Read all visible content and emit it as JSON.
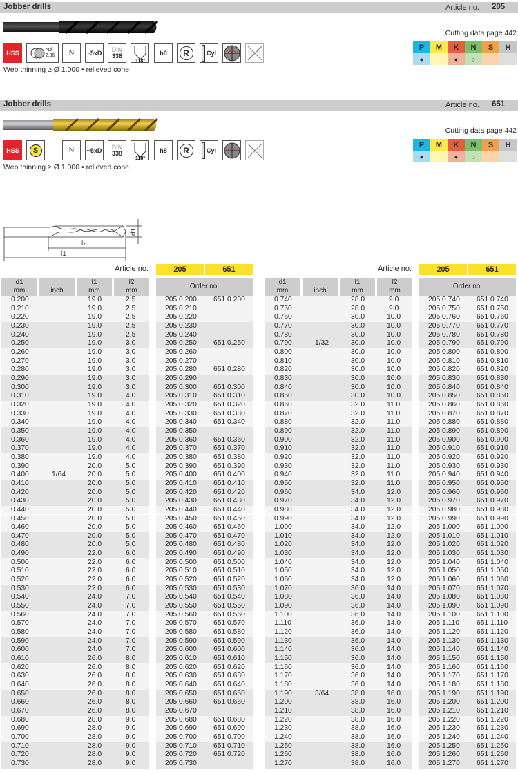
{
  "products": [
    {
      "title": "Jobber drills",
      "article_label": "Article no.",
      "article_no": "205",
      "cutting_data": "Cutting data page 442",
      "icons": [
        "HSS",
        "cylinder-shank >Ø 2,36",
        "N",
        "~5xD",
        "DIN 338",
        "118°",
        "h8",
        "R",
        "Cyl",
        "cross-section",
        "no-coolant"
      ],
      "icon_text": {
        "hss": "HSS",
        "dia": ">Ø",
        "dia_val": "2,36",
        "n": "N",
        "depth": "~5xD",
        "din": "DIN",
        "din_no": "338",
        "angle": "118°",
        "tol": "h8",
        "r": "R",
        "cyl": "Cyl"
      },
      "drill_finish": "black",
      "note": "Web thinning ≥ Ø 1.000 • relieved cone"
    },
    {
      "title": "Jobber drills",
      "article_label": "Article no.",
      "article_no": "651",
      "cutting_data": "Cutting data page 442",
      "icons": [
        "HSS",
        "S",
        "N",
        "~5xD",
        "DIN 338",
        "118°",
        "h8",
        "R",
        "Cyl",
        "cross-section",
        "no-coolant"
      ],
      "icon_text": {
        "hss": "HSS",
        "s": "S",
        "n": "N",
        "depth": "~5xD",
        "din": "DIN",
        "din_no": "338",
        "angle": "118°",
        "tol": "h8",
        "r": "R",
        "cyl": "Cyl"
      },
      "drill_finish": "TiN gold",
      "note": "Web thinning ≥ Ø 1.000 • relieved cone"
    }
  ],
  "materials": {
    "groups": [
      {
        "letter": "P",
        "color": "#1bb5e8",
        "light": "#a9dcf3",
        "mark": "●"
      },
      {
        "letter": "M",
        "color": "#fbe94a",
        "light": "#fdf6b5",
        "mark": ""
      },
      {
        "letter": "K",
        "color": "#e0603f",
        "light": "#efb29d",
        "mark": "●"
      },
      {
        "letter": "N",
        "color": "#7cbf6a",
        "light": "#c3e1b6",
        "mark": "○"
      },
      {
        "letter": "S",
        "color": "#f4a04a",
        "light": "#fbd4ab",
        "mark": ""
      },
      {
        "letter": "H",
        "color": "#c6c6c7",
        "light": "#dededf",
        "mark": ""
      }
    ]
  },
  "diagram": {
    "d1": "d1",
    "l1": "l1",
    "l2": "l2"
  },
  "table": {
    "article_label": "Article no.",
    "articles": [
      "205",
      "651"
    ],
    "headers": {
      "d1": "d1",
      "d1_unit": "mm",
      "inch": "inch",
      "l1": "l1",
      "l1_unit": "mm",
      "l2": "l2",
      "l2_unit": "mm",
      "order": "Order no."
    },
    "left_rows": [
      [
        "0.200",
        "",
        "19.0",
        "2.5",
        "205 0.200",
        "651 0.200"
      ],
      [
        "0.210",
        "",
        "19.0",
        "2.5",
        "205 0.210",
        ""
      ],
      [
        "0.220",
        "",
        "19.0",
        "2.5",
        "205 0.220",
        ""
      ],
      [
        "0.230",
        "",
        "19.0",
        "2.5",
        "205 0.230",
        ""
      ],
      [
        "0.240",
        "",
        "19.0",
        "2.5",
        "205 0.240",
        ""
      ],
      [
        "0.250",
        "",
        "19.0",
        "3.0",
        "205 0.250",
        "651 0.250"
      ],
      [
        "0.260",
        "",
        "19.0",
        "3.0",
        "205 0.260",
        ""
      ],
      [
        "0.270",
        "",
        "19.0",
        "3.0",
        "205 0.270",
        ""
      ],
      [
        "0.280",
        "",
        "19.0",
        "3.0",
        "205 0.280",
        "651 0.280"
      ],
      [
        "0.290",
        "",
        "19.0",
        "3.0",
        "205 0.290",
        ""
      ],
      [
        "0.300",
        "",
        "19.0",
        "3.0",
        "205 0.300",
        "651 0.300"
      ],
      [
        "0.310",
        "",
        "19.0",
        "4.0",
        "205 0.310",
        "651 0.310"
      ],
      [
        "0.320",
        "",
        "19.0",
        "4.0",
        "205 0.320",
        "651 0.320"
      ],
      [
        "0.330",
        "",
        "19.0",
        "4.0",
        "205 0.330",
        "651 0.330"
      ],
      [
        "0.340",
        "",
        "19.0",
        "4.0",
        "205 0.340",
        "651 0.340"
      ],
      [
        "0.350",
        "",
        "19.0",
        "4.0",
        "205 0.350",
        ""
      ],
      [
        "0.360",
        "",
        "19.0",
        "4.0",
        "205 0.360",
        "651 0.360"
      ],
      [
        "0.370",
        "",
        "19.0",
        "4.0",
        "205 0.370",
        "651 0.370"
      ],
      [
        "0.380",
        "",
        "19.0",
        "4.0",
        "205 0.380",
        "651 0.380"
      ],
      [
        "0.390",
        "",
        "20.0",
        "5.0",
        "205 0.390",
        "651 0.390"
      ],
      [
        "0.400",
        "1/64",
        "20.0",
        "5.0",
        "205 0.400",
        "651 0.400"
      ],
      [
        "0.410",
        "",
        "20.0",
        "5.0",
        "205 0.410",
        "651 0.410"
      ],
      [
        "0.420",
        "",
        "20.0",
        "5.0",
        "205 0.420",
        "651 0.420"
      ],
      [
        "0.430",
        "",
        "20.0",
        "5.0",
        "205 0.430",
        "651 0.430"
      ],
      [
        "0.440",
        "",
        "20.0",
        "5.0",
        "205 0.440",
        "651 0.440"
      ],
      [
        "0.450",
        "",
        "20.0",
        "5.0",
        "205 0.450",
        "651 0.450"
      ],
      [
        "0.460",
        "",
        "20.0",
        "5.0",
        "205 0.460",
        "651 0.460"
      ],
      [
        "0.470",
        "",
        "20.0",
        "5.0",
        "205 0.470",
        "651 0.470"
      ],
      [
        "0.480",
        "",
        "20.0",
        "5.0",
        "205 0.480",
        "651 0.480"
      ],
      [
        "0.490",
        "",
        "22.0",
        "6.0",
        "205 0.490",
        "651 0.490"
      ],
      [
        "0.500",
        "",
        "22.0",
        "6.0",
        "205 0.500",
        "651 0.500"
      ],
      [
        "0.510",
        "",
        "22.0",
        "6.0",
        "205 0.510",
        "651 0.510"
      ],
      [
        "0.520",
        "",
        "22.0",
        "6.0",
        "205 0.520",
        "651 0.520"
      ],
      [
        "0.530",
        "",
        "22.0",
        "6.0",
        "205 0.530",
        "651 0.530"
      ],
      [
        "0.540",
        "",
        "24.0",
        "7.0",
        "205 0.540",
        "651 0.540"
      ],
      [
        "0.550",
        "",
        "24.0",
        "7.0",
        "205 0.550",
        "651 0.550"
      ],
      [
        "0.560",
        "",
        "24.0",
        "7.0",
        "205 0.560",
        "651 0.560"
      ],
      [
        "0.570",
        "",
        "24.0",
        "7.0",
        "205 0.570",
        "651 0.570"
      ],
      [
        "0.580",
        "",
        "24.0",
        "7.0",
        "205 0.580",
        "651 0.580"
      ],
      [
        "0.590",
        "",
        "24.0",
        "7.0",
        "205 0.590",
        "651 0.590"
      ],
      [
        "0.600",
        "",
        "24.0",
        "7.0",
        "205 0.600",
        "651 0.600"
      ],
      [
        "0.610",
        "",
        "26.0",
        "8.0",
        "205 0.610",
        "651 0.610"
      ],
      [
        "0.620",
        "",
        "26.0",
        "8.0",
        "205 0.620",
        "651 0.620"
      ],
      [
        "0.630",
        "",
        "26.0",
        "8.0",
        "205 0.630",
        "651 0.630"
      ],
      [
        "0.640",
        "",
        "26.0",
        "8.0",
        "205 0.640",
        "651 0.640"
      ],
      [
        "0.650",
        "",
        "26.0",
        "8.0",
        "205 0.650",
        "651 0.650"
      ],
      [
        "0.660",
        "",
        "26.0",
        "8.0",
        "205 0.660",
        "651 0.660"
      ],
      [
        "0.670",
        "",
        "26.0",
        "8.0",
        "205 0.670",
        ""
      ],
      [
        "0.680",
        "",
        "28.0",
        "9.0",
        "205 0.680",
        "651 0.680"
      ],
      [
        "0.690",
        "",
        "28.0",
        "9.0",
        "205 0.690",
        "651 0.690"
      ],
      [
        "0.700",
        "",
        "28.0",
        "9.0",
        "205 0.700",
        "651 0.700"
      ],
      [
        "0.710",
        "",
        "28.0",
        "9.0",
        "205 0.710",
        "651 0.710"
      ],
      [
        "0.720",
        "",
        "28.0",
        "9.0",
        "205 0.720",
        "651 0.720"
      ],
      [
        "0.730",
        "",
        "28.0",
        "9.0",
        "205 0.730",
        ""
      ]
    ],
    "right_rows": [
      [
        "0.740",
        "",
        "28.0",
        "9.0",
        "205 0.740",
        "651 0.740"
      ],
      [
        "0.750",
        "",
        "28.0",
        "9.0",
        "205 0.750",
        "651 0.750"
      ],
      [
        "0.760",
        "",
        "30.0",
        "10.0",
        "205 0.760",
        "651 0.760"
      ],
      [
        "0.770",
        "",
        "30.0",
        "10.0",
        "205 0.770",
        "651 0.770"
      ],
      [
        "0.780",
        "",
        "30.0",
        "10.0",
        "205 0.780",
        "651 0.780"
      ],
      [
        "0.790",
        "1/32",
        "30.0",
        "10.0",
        "205 0.790",
        "651 0.790"
      ],
      [
        "0.800",
        "",
        "30.0",
        "10.0",
        "205 0.800",
        "651 0.800"
      ],
      [
        "0.810",
        "",
        "30.0",
        "10.0",
        "205 0.810",
        "651 0.810"
      ],
      [
        "0.820",
        "",
        "30.0",
        "10.0",
        "205 0.820",
        "651 0.820"
      ],
      [
        "0.830",
        "",
        "30.0",
        "10.0",
        "205 0.830",
        "651 0.830"
      ],
      [
        "0.840",
        "",
        "30.0",
        "10.0",
        "205 0.840",
        "651 0.840"
      ],
      [
        "0.850",
        "",
        "30.0",
        "10.0",
        "205 0.850",
        "651 0.850"
      ],
      [
        "0.860",
        "",
        "32.0",
        "11.0",
        "205 0.860",
        "651 0.860"
      ],
      [
        "0.870",
        "",
        "32.0",
        "11.0",
        "205 0.870",
        "651 0.870"
      ],
      [
        "0.880",
        "",
        "32.0",
        "11.0",
        "205 0.880",
        "651 0.880"
      ],
      [
        "0.890",
        "",
        "32.0",
        "11.0",
        "205 0.890",
        "651 0.890"
      ],
      [
        "0.900",
        "",
        "32.0",
        "11.0",
        "205 0.900",
        "651 0.900"
      ],
      [
        "0.910",
        "",
        "32.0",
        "11.0",
        "205 0.910",
        "651 0.910"
      ],
      [
        "0.920",
        "",
        "32.0",
        "11.0",
        "205 0.920",
        "651 0.920"
      ],
      [
        "0.930",
        "",
        "32.0",
        "11.0",
        "205 0.930",
        "651 0.930"
      ],
      [
        "0.940",
        "",
        "32.0",
        "11.0",
        "205 0.940",
        "651 0.940"
      ],
      [
        "0.950",
        "",
        "32.0",
        "11.0",
        "205 0.950",
        "651 0.950"
      ],
      [
        "0.960",
        "",
        "34.0",
        "12.0",
        "205 0.960",
        "651 0.960"
      ],
      [
        "0.970",
        "",
        "34.0",
        "12.0",
        "205 0.970",
        "651 0.970"
      ],
      [
        "0.980",
        "",
        "34.0",
        "12.0",
        "205 0.980",
        "651 0.980"
      ],
      [
        "0.990",
        "",
        "34.0",
        "12.0",
        "205 0.990",
        "651 0.990"
      ],
      [
        "1.000",
        "",
        "34.0",
        "12.0",
        "205 1.000",
        "651 1.000"
      ],
      [
        "1.010",
        "",
        "34.0",
        "12.0",
        "205 1.010",
        "651 1.010"
      ],
      [
        "1.020",
        "",
        "34.0",
        "12.0",
        "205 1.020",
        "651 1.020"
      ],
      [
        "1.030",
        "",
        "34.0",
        "12.0",
        "205 1.030",
        "651 1.030"
      ],
      [
        "1.040",
        "",
        "34.0",
        "12.0",
        "205 1.040",
        "651 1.040"
      ],
      [
        "1.050",
        "",
        "34.0",
        "12.0",
        "205 1.050",
        "651 1.050"
      ],
      [
        "1.060",
        "",
        "34.0",
        "12.0",
        "205 1.060",
        "651 1.060"
      ],
      [
        "1.070",
        "",
        "36.0",
        "14.0",
        "205 1.070",
        "651 1.070"
      ],
      [
        "1.080",
        "",
        "36.0",
        "14.0",
        "205 1.080",
        "651 1.080"
      ],
      [
        "1.090",
        "",
        "36.0",
        "14.0",
        "205 1.090",
        "651 1.090"
      ],
      [
        "1.100",
        "",
        "36.0",
        "14.0",
        "205 1.100",
        "651 1.100"
      ],
      [
        "1.110",
        "",
        "36.0",
        "14.0",
        "205 1.110",
        "651 1.110"
      ],
      [
        "1.120",
        "",
        "36.0",
        "14.0",
        "205 1.120",
        "651 1.120"
      ],
      [
        "1.130",
        "",
        "36.0",
        "14.0",
        "205 1.130",
        "651 1.130"
      ],
      [
        "1.140",
        "",
        "36.0",
        "14.0",
        "205 1.140",
        "651 1.140"
      ],
      [
        "1.150",
        "",
        "36.0",
        "14.0",
        "205 1.150",
        "651 1.150"
      ],
      [
        "1.160",
        "",
        "36.0",
        "14.0",
        "205 1.160",
        "651 1.160"
      ],
      [
        "1.170",
        "",
        "36.0",
        "14.0",
        "205 1.170",
        "651 1.170"
      ],
      [
        "1.180",
        "",
        "36.0",
        "14.0",
        "205 1.180",
        "651 1.180"
      ],
      [
        "1.190",
        "3/64",
        "38.0",
        "16.0",
        "205 1.190",
        "651 1.190"
      ],
      [
        "1.200",
        "",
        "38.0",
        "16.0",
        "205 1.200",
        "651 1.200"
      ],
      [
        "1.210",
        "",
        "38.0",
        "16.0",
        "205 1.210",
        "651 1.210"
      ],
      [
        "1.220",
        "",
        "38.0",
        "16.0",
        "205 1.220",
        "651 1.220"
      ],
      [
        "1.230",
        "",
        "38.0",
        "16.0",
        "205 1.230",
        "651 1.230"
      ],
      [
        "1.240",
        "",
        "38.0",
        "16.0",
        "205 1.240",
        "651 1.240"
      ],
      [
        "1.250",
        "",
        "38.0",
        "16.0",
        "205 1.250",
        "651 1.250"
      ],
      [
        "1.260",
        "",
        "38.0",
        "16.0",
        "205 1.260",
        "651 1.260"
      ],
      [
        "1.270",
        "",
        "38.0",
        "16.0",
        "205 1.270",
        "651 1.270"
      ]
    ]
  }
}
